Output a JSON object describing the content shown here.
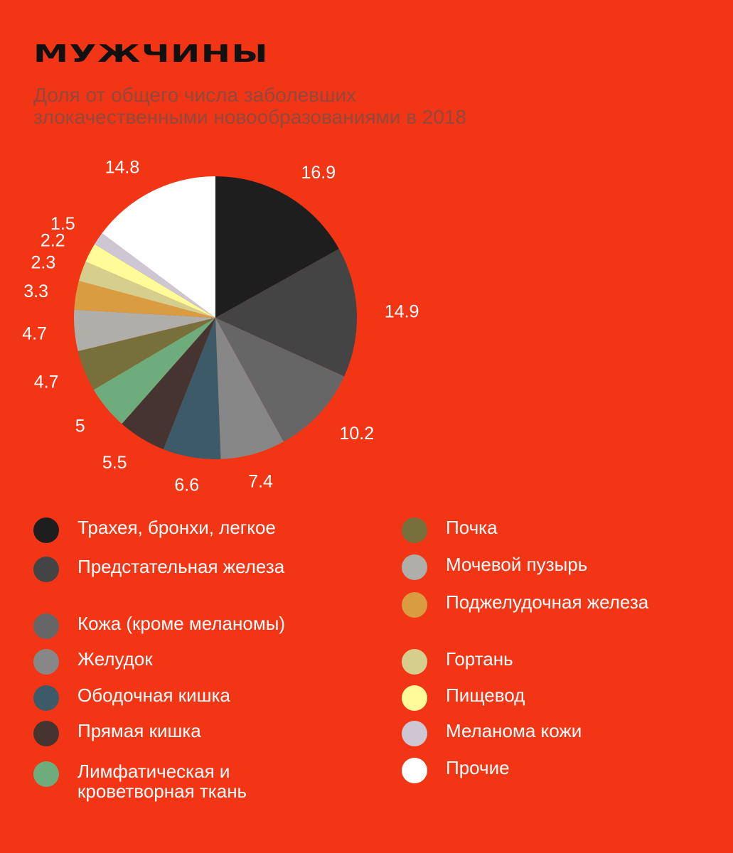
{
  "header": {
    "title": "МУЖЧИНЫ",
    "subtitle": "Доля от общего числа заболевших злокачественными новообразованиями в 2018"
  },
  "chart_data": {
    "type": "pie",
    "title": "МУЖЧИНЫ",
    "subtitle": "Доля от общего числа заболевших злокачественными новообразованиями в 2018",
    "unit": "%",
    "slices": [
      {
        "label": "Трахея, бронхи, легкое",
        "value": 16.9,
        "value_label": "16.9",
        "color": "#1E1E1E"
      },
      {
        "label": "Предстательная железа",
        "value": 14.9,
        "value_label": "14.9",
        "color": "#444444"
      },
      {
        "label": "Кожа (кроме меланомы)",
        "value": 10.2,
        "value_label": "10.2",
        "color": "#666666"
      },
      {
        "label": "Желудок",
        "value": 7.4,
        "value_label": "7.4",
        "color": "#878787"
      },
      {
        "label": "Ободочная кишка",
        "value": 6.6,
        "value_label": "6.6",
        "color": "#3C5A68"
      },
      {
        "label": "Прямая кишка",
        "value": 5.5,
        "value_label": "5.5",
        "color": "#463430"
      },
      {
        "label": "Лимфатическая и кроветворная ткань",
        "value": 5.0,
        "value_label": "5",
        "color": "#6FAC7C"
      },
      {
        "label": "Почка",
        "value": 4.7,
        "value_label": "4.7",
        "color": "#78703C"
      },
      {
        "label": "Мочевой пузырь",
        "value": 4.7,
        "value_label": "4.7",
        "color": "#B0AEA8"
      },
      {
        "label": "Поджелудочная железа",
        "value": 3.3,
        "value_label": "3.3",
        "color": "#DA9C40"
      },
      {
        "label": "Гортань",
        "value": 2.3,
        "value_label": "2.3",
        "color": "#D5CE8C"
      },
      {
        "label": "Пищевод",
        "value": 2.2,
        "value_label": "2.2",
        "color": "#FEFB98"
      },
      {
        "label": "Меланома кожи",
        "value": 1.5,
        "value_label": "1.5",
        "color": "#CDC7D4"
      },
      {
        "label": "Прочие",
        "value": 14.8,
        "value_label": "14.8",
        "color": "#FFFFFF"
      }
    ]
  }
}
